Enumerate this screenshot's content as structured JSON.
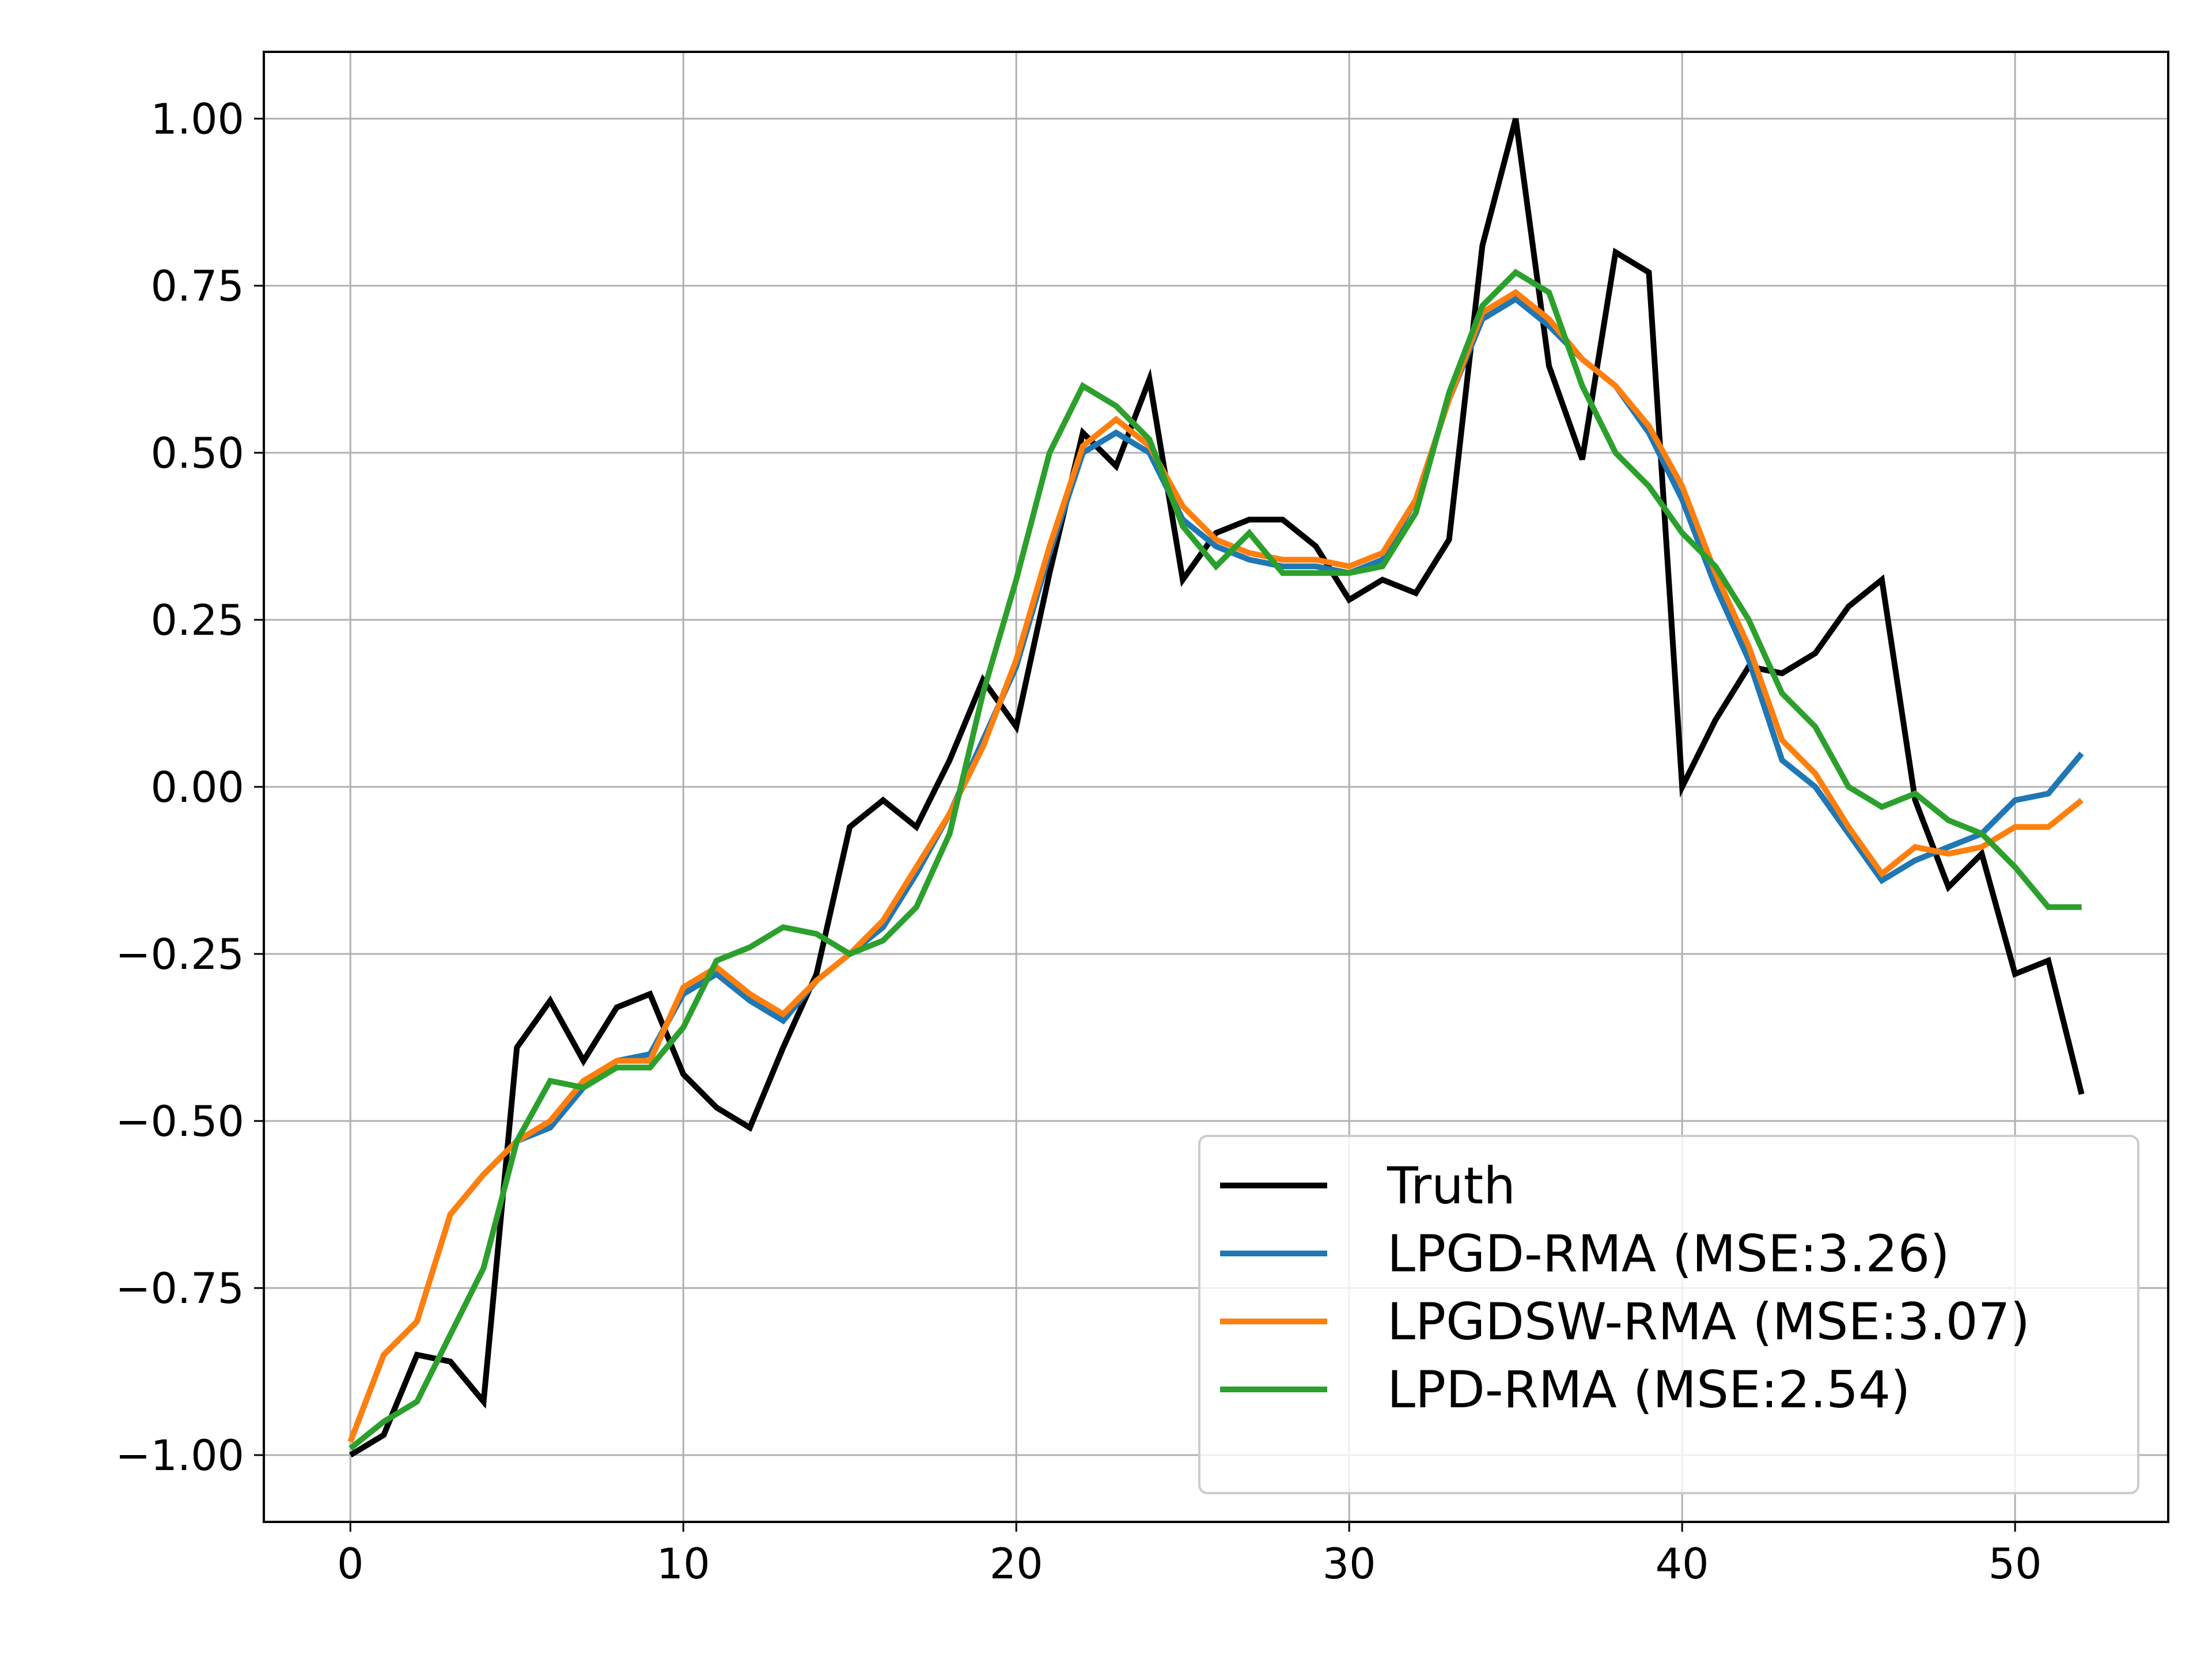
{
  "chart_data": {
    "type": "line",
    "xlim": [
      -2.6,
      54.6
    ],
    "ylim": [
      -1.1,
      1.1
    ],
    "xticks": [
      0,
      10,
      20,
      30,
      40,
      50
    ],
    "xtick_labels": [
      "0",
      "10",
      "20",
      "30",
      "40",
      "50"
    ],
    "yticks": [
      -1.0,
      -0.75,
      -0.5,
      -0.25,
      0.0,
      0.25,
      0.5,
      0.75,
      1.0
    ],
    "ytick_labels": [
      "−1.00",
      "−0.75",
      "−0.50",
      "−0.25",
      "0.00",
      "0.25",
      "0.50",
      "0.75",
      "1.00"
    ],
    "grid": true,
    "legend_position": "lower-right",
    "series": [
      {
        "name": "Truth",
        "color": "#000000",
        "values": [
          -1.0,
          -0.97,
          -0.85,
          -0.86,
          -0.92,
          -0.39,
          -0.32,
          -0.41,
          -0.33,
          -0.31,
          -0.43,
          -0.48,
          -0.51,
          -0.39,
          -0.28,
          -0.06,
          -0.02,
          -0.06,
          0.04,
          0.16,
          0.09,
          0.32,
          0.53,
          0.48,
          0.61,
          0.31,
          0.38,
          0.4,
          0.4,
          0.36,
          0.28,
          0.31,
          0.29,
          0.37,
          0.81,
          1.0,
          0.63,
          0.49,
          0.8,
          0.77,
          0.0,
          0.1,
          0.18,
          0.17,
          0.2,
          0.27,
          0.31,
          -0.02,
          -0.15,
          -0.1,
          -0.28,
          -0.26,
          -0.46
        ]
      },
      {
        "name": "LPGD-RMA (MSE:3.26)",
        "color": "#1f77b4",
        "values": [
          -0.98,
          -0.85,
          -0.8,
          -0.64,
          -0.58,
          -0.53,
          -0.51,
          -0.45,
          -0.41,
          -0.4,
          -0.31,
          -0.28,
          -0.32,
          -0.35,
          -0.29,
          -0.25,
          -0.21,
          -0.13,
          -0.04,
          0.07,
          0.18,
          0.35,
          0.5,
          0.53,
          0.5,
          0.4,
          0.36,
          0.34,
          0.33,
          0.33,
          0.32,
          0.34,
          0.43,
          0.58,
          0.7,
          0.73,
          0.69,
          0.64,
          0.6,
          0.53,
          0.43,
          0.3,
          0.19,
          0.04,
          0.0,
          -0.07,
          -0.14,
          -0.11,
          -0.09,
          -0.07,
          -0.02,
          -0.01,
          0.05
        ]
      },
      {
        "name": "LPGDSW-RMA (MSE:3.07)",
        "color": "#ff7f0e",
        "values": [
          -0.98,
          -0.85,
          -0.8,
          -0.64,
          -0.58,
          -0.53,
          -0.5,
          -0.44,
          -0.41,
          -0.41,
          -0.3,
          -0.27,
          -0.31,
          -0.34,
          -0.29,
          -0.25,
          -0.2,
          -0.12,
          -0.04,
          0.06,
          0.19,
          0.36,
          0.51,
          0.55,
          0.51,
          0.42,
          0.37,
          0.35,
          0.34,
          0.34,
          0.33,
          0.35,
          0.43,
          0.58,
          0.71,
          0.74,
          0.7,
          0.64,
          0.6,
          0.54,
          0.45,
          0.32,
          0.21,
          0.07,
          0.02,
          -0.06,
          -0.13,
          -0.09,
          -0.1,
          -0.09,
          -0.06,
          -0.06,
          -0.02
        ]
      },
      {
        "name": "LPD-RMA (MSE:2.54)",
        "color": "#2ca02c",
        "values": [
          -0.99,
          -0.95,
          -0.92,
          -0.82,
          -0.72,
          -0.53,
          -0.44,
          -0.45,
          -0.42,
          -0.42,
          -0.36,
          -0.26,
          -0.24,
          -0.21,
          -0.22,
          -0.25,
          -0.23,
          -0.18,
          -0.07,
          0.14,
          0.31,
          0.5,
          0.6,
          0.57,
          0.52,
          0.39,
          0.33,
          0.38,
          0.32,
          0.32,
          0.32,
          0.33,
          0.41,
          0.59,
          0.72,
          0.77,
          0.74,
          0.6,
          0.5,
          0.45,
          0.38,
          0.33,
          0.25,
          0.14,
          0.09,
          0.0,
          -0.03,
          -0.01,
          -0.05,
          -0.07,
          -0.12,
          -0.18,
          -0.18
        ]
      }
    ]
  }
}
